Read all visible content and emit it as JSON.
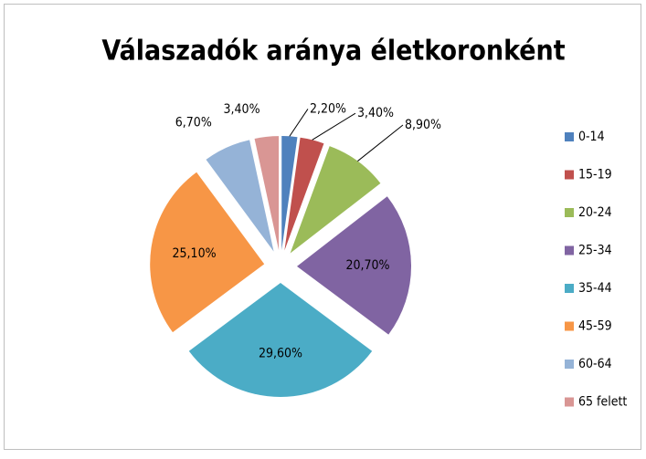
{
  "chart_data": {
    "type": "pie",
    "title": "Válaszadók aránya életkoronként",
    "categories": [
      "0-14",
      "15-19",
      "20-24",
      "25-34",
      "35-44",
      "45-59",
      "60-64",
      "65 felett"
    ],
    "values": [
      2.2,
      3.4,
      8.9,
      20.7,
      29.6,
      25.1,
      6.7,
      3.4
    ],
    "value_labels": [
      "2,20%",
      "3,40%",
      "8,90%",
      "20,70%",
      "29,60%",
      "25,10%",
      "6,70%",
      "3,40%"
    ],
    "colors": [
      "#4f81bd",
      "#c0504d",
      "#9bbb59",
      "#8064a2",
      "#4bacc6",
      "#f79646",
      "#95b3d7",
      "#d99694"
    ],
    "legend": "right"
  }
}
